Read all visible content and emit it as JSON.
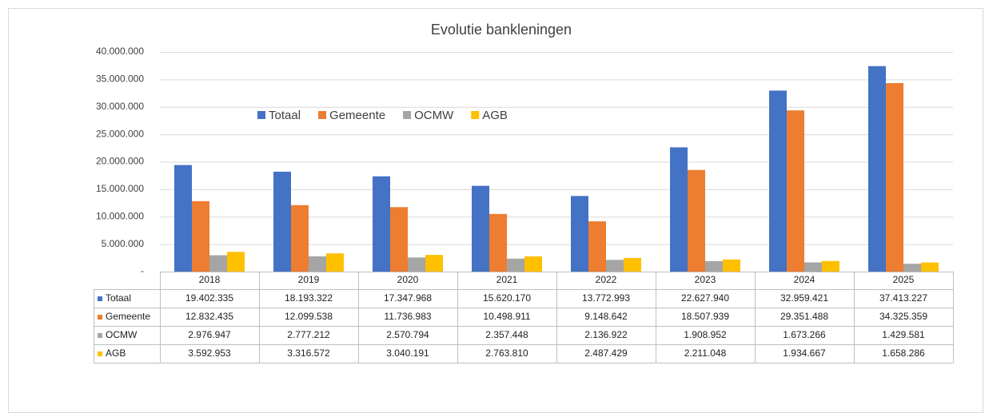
{
  "chart_data": {
    "type": "bar",
    "title": "Evolutie bankleningen",
    "categories": [
      "2018",
      "2019",
      "2020",
      "2021",
      "2022",
      "2023",
      "2024",
      "2025"
    ],
    "series": [
      {
        "name": "Totaal",
        "color": "#4472c4",
        "values": [
          19402335,
          18193322,
          17347968,
          15620170,
          13772993,
          22627940,
          32959421,
          37413227
        ],
        "value_labels": [
          "19.402.335",
          "18.193.322",
          "17.347.968",
          "15.620.170",
          "13.772.993",
          "22.627.940",
          "32.959.421",
          "37.413.227"
        ]
      },
      {
        "name": "Gemeente",
        "color": "#ed7d31",
        "values": [
          12832435,
          12099538,
          11736983,
          10498911,
          9148642,
          18507939,
          29351488,
          34325359
        ],
        "value_labels": [
          "12.832.435",
          "12.099.538",
          "11.736.983",
          "10.498.911",
          "9.148.642",
          "18.507.939",
          "29.351.488",
          "34.325.359"
        ]
      },
      {
        "name": "OCMW",
        "color": "#a5a5a5",
        "values": [
          2976947,
          2777212,
          2570794,
          2357448,
          2136922,
          1908952,
          1673266,
          1429581
        ],
        "value_labels": [
          "2.976.947",
          "2.777.212",
          "2.570.794",
          "2.357.448",
          "2.136.922",
          "1.908.952",
          "1.673.266",
          "1.429.581"
        ]
      },
      {
        "name": "AGB",
        "color": "#ffc000",
        "values": [
          3592953,
          3316572,
          3040191,
          2763810,
          2487429,
          2211048,
          1934667,
          1658286
        ],
        "value_labels": [
          "3.592.953",
          "3.316.572",
          "3.040.191",
          "2.763.810",
          "2.487.429",
          "2.211.048",
          "1.934.667",
          "1.658.286"
        ]
      }
    ],
    "ylim": [
      0,
      40000000
    ],
    "yticks": [
      {
        "value": 0,
        "label": "-"
      },
      {
        "value": 5000000,
        "label": "5.000.000"
      },
      {
        "value": 10000000,
        "label": "10.000.000"
      },
      {
        "value": 15000000,
        "label": "15.000.000"
      },
      {
        "value": 20000000,
        "label": "20.000.000"
      },
      {
        "value": 25000000,
        "label": "25.000.000"
      },
      {
        "value": 30000000,
        "label": "30.000.000"
      },
      {
        "value": 35000000,
        "label": "35.000.000"
      },
      {
        "value": 40000000,
        "label": "40.000.000"
      }
    ],
    "grid": true,
    "legend": "top",
    "data_table": true
  }
}
